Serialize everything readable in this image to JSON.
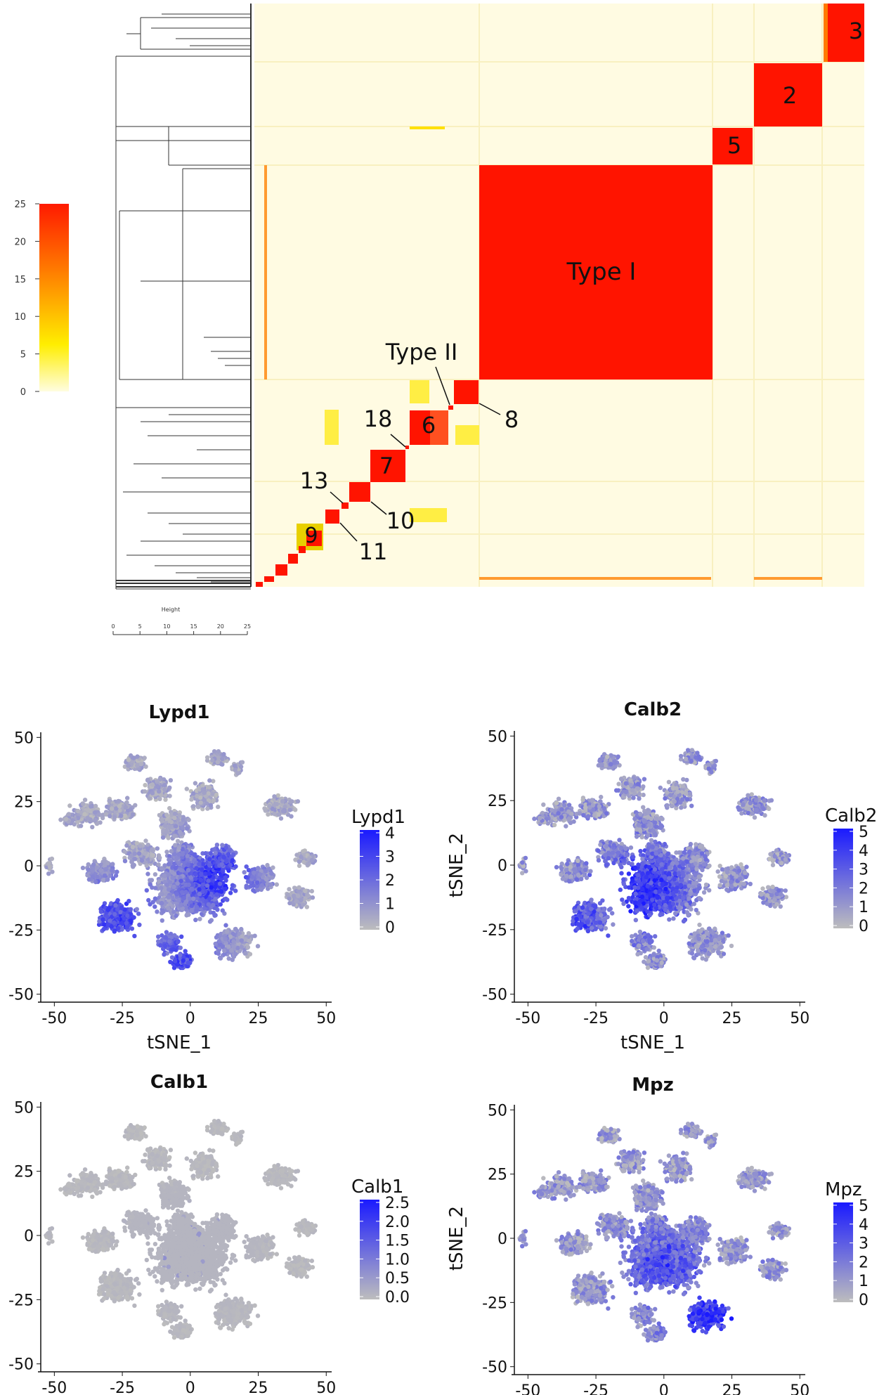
{
  "heatmap": {
    "colorbar": {
      "ticks": [
        "0",
        "5",
        "10",
        "15",
        "20",
        "25"
      ],
      "low_color": "#fffde0",
      "mid_color": "#ffee00",
      "high_color": "#ff1a00"
    },
    "height_axis": {
      "label": "Height",
      "ticks": [
        "0",
        "5",
        "10",
        "15",
        "20",
        "25"
      ]
    },
    "labels": {
      "type1": "Type I",
      "type2": "Type II",
      "c2": "2",
      "c3": "3",
      "c5": "5",
      "c6": "6",
      "c7": "7",
      "c8": "8",
      "c9": "9",
      "c10": "10",
      "c11": "11",
      "c13": "13",
      "c18": "18"
    },
    "background_color": "#fffbe2",
    "block_color": "#ff1400"
  },
  "panels": [
    {
      "title": "Lypd1",
      "legend_title": "Lypd1",
      "legend_ticks": [
        "4",
        "3",
        "2",
        "1",
        "0"
      ],
      "xlabel": "tSNE_1",
      "ylabel": ""
    },
    {
      "title": "Calb2",
      "legend_title": "Calb2",
      "legend_ticks": [
        "5",
        "4",
        "3",
        "2",
        "1",
        "0"
      ],
      "xlabel": "tSNE_1",
      "ylabel": "tSNE_2"
    },
    {
      "title": "Calb1",
      "legend_title": "Calb1",
      "legend_ticks": [
        "2.5",
        "2.0",
        "1.5",
        "1.0",
        "0.5",
        "0.0"
      ],
      "xlabel": "",
      "ylabel": ""
    },
    {
      "title": "Mpz",
      "legend_title": "Mpz",
      "legend_ticks": [
        "5",
        "4",
        "3",
        "2",
        "1",
        "0"
      ],
      "xlabel": "",
      "ylabel": "tSNE_2"
    }
  ],
  "tsne_axes": {
    "x_ticks": [
      "-50",
      "-25",
      "0",
      "25",
      "50"
    ],
    "y_ticks": [
      "50",
      "25",
      "0",
      "-25",
      "-50"
    ],
    "low_color": "#bdbdbd",
    "high_color": "#1a1aff"
  },
  "chart_data": [
    {
      "type": "heatmap",
      "description_clusters": [
        "3",
        "2",
        "5",
        "Type I",
        "8",
        "6",
        "7",
        "10",
        "11",
        "9"
      ],
      "value_range": [
        0,
        25
      ]
    },
    {
      "type": "scatter",
      "feature": "Lypd1",
      "xlim": [
        -55,
        52
      ],
      "ylim": [
        -52,
        52
      ],
      "color_range": [
        0,
        4
      ],
      "highlighted_regions": [
        {
          "x": 10,
          "y": -5,
          "level": 3.5
        },
        {
          "x": -27,
          "y": -20,
          "level": 3.2
        },
        {
          "x": -3,
          "y": -37,
          "level": 3.0
        }
      ]
    },
    {
      "type": "scatter",
      "feature": "Calb2",
      "xlim": [
        -55,
        52
      ],
      "ylim": [
        -52,
        52
      ],
      "color_range": [
        0,
        5
      ],
      "highlighted_regions": [
        {
          "x": -8,
          "y": -10,
          "level": 4.5
        },
        {
          "x": -35,
          "y": -25,
          "level": 3.5
        }
      ]
    },
    {
      "type": "scatter",
      "feature": "Calb1",
      "xlim": [
        -55,
        52
      ],
      "ylim": [
        -52,
        52
      ],
      "color_range": [
        0,
        2.5
      ],
      "highlighted_regions": [
        {
          "x": 0,
          "y": -5,
          "level": 1.0
        }
      ]
    },
    {
      "type": "scatter",
      "feature": "Mpz",
      "xlim": [
        -55,
        52
      ],
      "ylim": [
        -52,
        52
      ],
      "color_range": [
        0,
        5
      ],
      "highlighted_regions": [
        {
          "x": 0,
          "y": -10,
          "level": 3.0
        },
        {
          "x": 18,
          "y": -33,
          "level": 4.5
        }
      ]
    }
  ]
}
